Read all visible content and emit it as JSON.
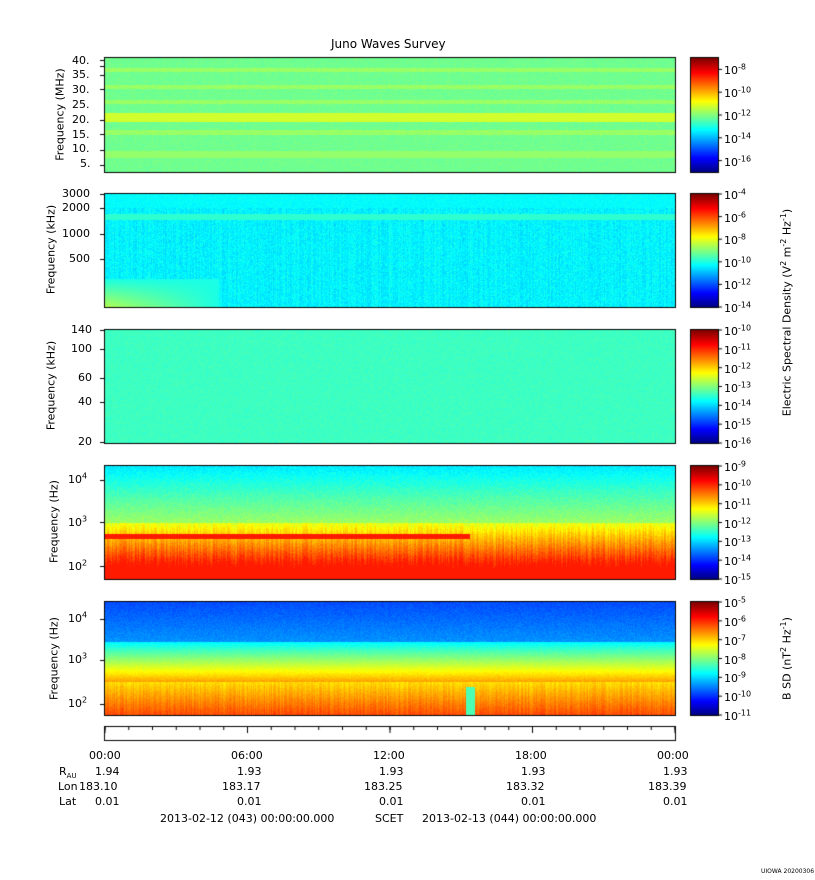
{
  "title": "Juno Waves Survey",
  "colors": {
    "band1": "#2ee07a",
    "band2": "#3bc8f0",
    "band3": "#37e4c6",
    "band4_low": "#f0a020",
    "band4_mid": "#88e830",
    "band4_high": "#3aa8f0",
    "band5_low": "#f8f820",
    "band5_mid": "#38e060",
    "band5_high": "#1e3ce8"
  },
  "chart_data": [
    {
      "type": "heatmap",
      "ylabel": "Frequency (MHz)",
      "yticks": [
        "40.",
        "35.",
        "30.",
        "25.",
        "20.",
        "15.",
        "10.",
        "5."
      ],
      "colorbar": {
        "ticks": [
          "10-8",
          "10-10",
          "10-12",
          "10-14",
          "10-16"
        ],
        "range_exp": [
          -17,
          -7
        ]
      }
    },
    {
      "type": "heatmap",
      "ylabel": "Frequency (kHz)",
      "yticks": [
        "3000",
        "2000",
        "1000",
        "500"
      ],
      "colorbar": {
        "ticks": [
          "10-4",
          "10-6",
          "10-8",
          "10-10",
          "10-12",
          "10-14"
        ],
        "range_exp": [
          -14,
          -4
        ]
      }
    },
    {
      "type": "heatmap",
      "ylabel": "Frequency (kHz)",
      "yticks": [
        "140",
        "100",
        "60",
        "40",
        "20"
      ],
      "colorbar": {
        "ticks": [
          "10-10",
          "10-11",
          "10-12",
          "10-13",
          "10-14",
          "10-15",
          "10-16"
        ],
        "range_exp": [
          -16,
          -10
        ]
      }
    },
    {
      "type": "heatmap",
      "ylabel": "Frequency (Hz)",
      "yticks": [
        "104",
        "103",
        "102"
      ],
      "colorbar": {
        "ticks": [
          "10-9",
          "10-10",
          "10-11",
          "10-12",
          "10-13",
          "10-14",
          "10-15"
        ],
        "range_exp": [
          -15,
          -9
        ]
      }
    },
    {
      "type": "heatmap",
      "ylabel": "Frequency (Hz)",
      "yticks": [
        "104",
        "103",
        "102"
      ],
      "colorbar": {
        "ticks": [
          "10-5",
          "10-6",
          "10-7",
          "10-8",
          "10-9",
          "10-10",
          "10-11"
        ],
        "range_exp": [
          -11,
          -5
        ]
      }
    }
  ],
  "colorbar_labels": {
    "electric": "Electric Spectral Density (V2 m-2 Hz-1)",
    "magnetic": "B SD (nT2 Hz-1)"
  },
  "xaxis": {
    "times": [
      "00:00",
      "06:00",
      "12:00",
      "18:00",
      "00:00"
    ],
    "rows": [
      {
        "label": "RAU",
        "values": [
          "1.94",
          "1.93",
          "1.93",
          "1.93",
          "1.93"
        ]
      },
      {
        "label": "Lon",
        "values": [
          "183.10",
          "183.17",
          "183.25",
          "183.32",
          "183.39"
        ]
      },
      {
        "label": "Lat",
        "values": [
          "0.01",
          "0.01",
          "0.01",
          "0.01",
          "0.01"
        ]
      }
    ],
    "start": "2013-02-12 (043) 00:00:00.000",
    "scet": "SCET",
    "end": "2013-02-13 (044) 00:00:00.000"
  },
  "footer": "UIOWA 20200306"
}
